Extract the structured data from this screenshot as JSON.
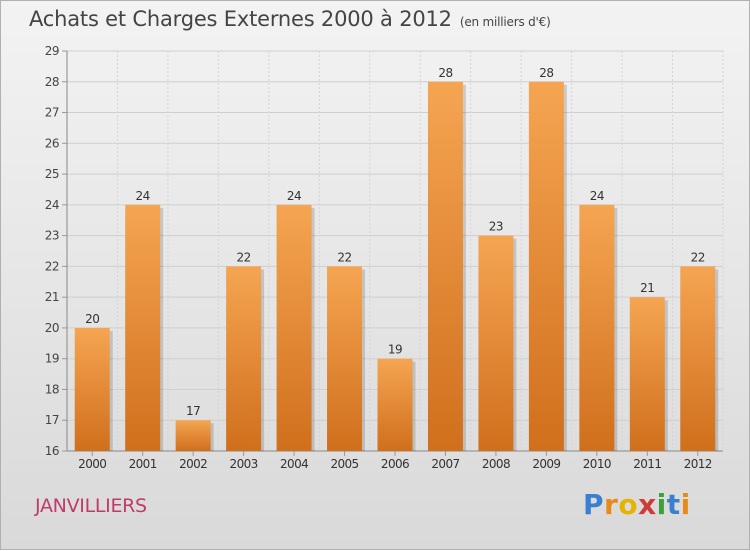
{
  "header": {
    "title": "Achats et Charges Externes 2000 à 2012",
    "subtitle": "(en milliers d'€)"
  },
  "footer": {
    "town": "JANVILLIERS",
    "logo_letters": [
      {
        "ch": "P",
        "color": "#3a7fd0"
      },
      {
        "ch": "r",
        "color": "#e88a1a"
      },
      {
        "ch": "o",
        "color": "#e6b400"
      },
      {
        "ch": "x",
        "color": "#d03a3a"
      },
      {
        "ch": "i",
        "color": "#3aa03a"
      },
      {
        "ch": "t",
        "color": "#3a7fd0"
      },
      {
        "ch": "i",
        "color": "#e88a1a"
      }
    ]
  },
  "chart_data": {
    "type": "bar",
    "categories": [
      "2000",
      "2001",
      "2002",
      "2003",
      "2004",
      "2005",
      "2006",
      "2007",
      "2008",
      "2009",
      "2010",
      "2011",
      "2012"
    ],
    "values": [
      20,
      24,
      17,
      22,
      24,
      22,
      19,
      28,
      23,
      28,
      24,
      21,
      22
    ],
    "ylim": [
      16,
      29
    ],
    "yticks": [
      16,
      17,
      18,
      19,
      20,
      21,
      22,
      23,
      24,
      25,
      26,
      27,
      28,
      29
    ],
    "grid": true,
    "bar_color_light": "#f5a552",
    "bar_color_dark": "#d06f1c",
    "label_color": "#333333"
  }
}
